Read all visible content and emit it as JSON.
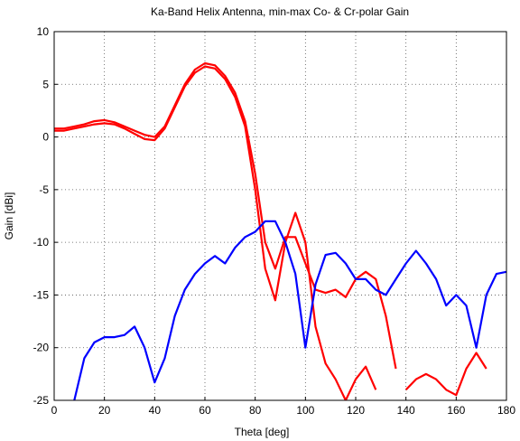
{
  "chart_data": {
    "type": "line",
    "title": "Ka-Band Helix Antenna, min-max Co- & Cr-polar Gain",
    "xlabel": "Theta [deg]",
    "ylabel": "Gain [dBi]",
    "x": [
      0,
      4,
      8,
      12,
      16,
      20,
      24,
      28,
      32,
      36,
      40,
      44,
      48,
      52,
      56,
      60,
      64,
      68,
      72,
      76,
      80,
      84,
      88,
      92,
      96,
      100,
      104,
      108,
      112,
      116,
      120,
      124,
      128,
      132,
      136,
      140,
      144,
      148,
      152,
      156,
      160,
      164,
      168,
      172,
      176,
      180
    ],
    "series": [
      {
        "color": "#ff0000",
        "values": [
          0.8,
          0.8,
          1.0,
          1.2,
          1.5,
          1.6,
          1.4,
          1.0,
          0.6,
          0.2,
          0.0,
          1.0,
          3.0,
          5.0,
          6.4,
          7.0,
          6.8,
          5.8,
          4.2,
          1.5,
          -3.5,
          -10,
          -12.5,
          -9.5,
          -9.5,
          -12,
          -14.5,
          -14.8,
          -14.5,
          -15.2,
          -13.5,
          -12.8,
          -13.5,
          -17,
          -22,
          null,
          null,
          null,
          null,
          null,
          null,
          null,
          null,
          null,
          null,
          null
        ]
      },
      {
        "color": "#ff0000",
        "values": [
          0.6,
          0.6,
          0.8,
          1.0,
          1.2,
          1.3,
          1.2,
          0.8,
          0.3,
          -0.2,
          -0.3,
          0.8,
          2.8,
          4.8,
          6.1,
          6.7,
          6.5,
          5.5,
          3.8,
          1.0,
          -5,
          -12.5,
          -15.5,
          -10,
          -7.2,
          -10,
          -18,
          -21.5,
          -23,
          -25,
          -23,
          -21.8,
          -24,
          null,
          null,
          -24,
          -23,
          -22.5,
          -23,
          -24,
          -24.5,
          -22,
          -20.5,
          -22,
          null,
          null
        ]
      },
      {
        "color": "#0000ff",
        "values": [
          null,
          null,
          -25,
          -21,
          -19.5,
          -19,
          -19,
          -18.8,
          -18,
          -20,
          -23.3,
          -21,
          -17,
          -14.5,
          -13,
          -12,
          -11.3,
          -12,
          -10.5,
          -9.5,
          -9,
          -8,
          -8,
          -10,
          -13,
          -20,
          -14,
          -11.2,
          -11,
          -12,
          -13.5,
          -13.5,
          -14.5,
          -15,
          -13.5,
          -12,
          -10.8,
          -12,
          -13.5,
          -16,
          -15,
          -16,
          -20,
          -15,
          -13,
          -12.8
        ]
      }
    ],
    "xlim": [
      0,
      180
    ],
    "ylim": [
      -25,
      10
    ],
    "xticks": [
      0,
      20,
      40,
      60,
      80,
      100,
      120,
      140,
      160,
      180
    ],
    "yticks": [
      -25,
      -20,
      -15,
      -10,
      -5,
      0,
      5,
      10
    ],
    "grid": true
  }
}
